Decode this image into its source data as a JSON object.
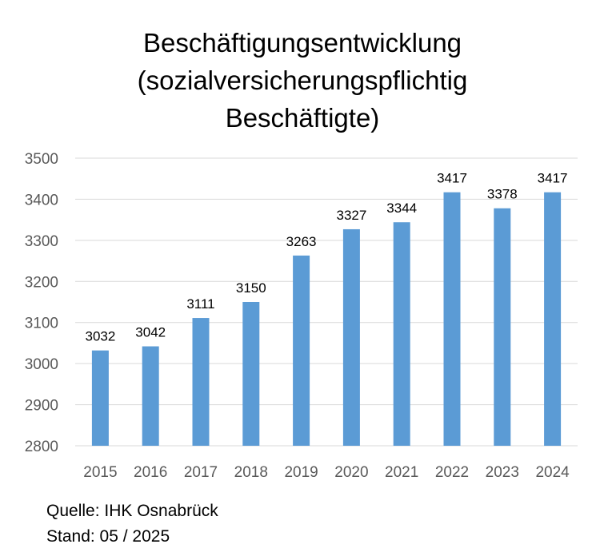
{
  "chart_data": {
    "type": "bar",
    "title_lines": [
      "Beschäftigungsentwicklung",
      "(sozialversicherungspflichtig",
      "Beschäftigte)"
    ],
    "categories": [
      "2015",
      "2016",
      "2017",
      "2018",
      "2019",
      "2020",
      "2021",
      "2022",
      "2023",
      "2024"
    ],
    "values": [
      3032,
      3042,
      3111,
      3150,
      3263,
      3327,
      3344,
      3417,
      3378,
      3417
    ],
    "data_labels": [
      "3032",
      "3042",
      "3111",
      "3150",
      "3263",
      "3327",
      "3344",
      "3417",
      "3378",
      "3417"
    ],
    "ylim": [
      2800,
      3500
    ],
    "yticks": [
      2800,
      2900,
      3000,
      3100,
      3200,
      3300,
      3400,
      3500
    ],
    "grid": true,
    "bar_color": "#5b9bd5"
  },
  "footer": {
    "source": "Quelle: IHK Osnabrück",
    "stand": "Stand: 05 / 2025"
  }
}
